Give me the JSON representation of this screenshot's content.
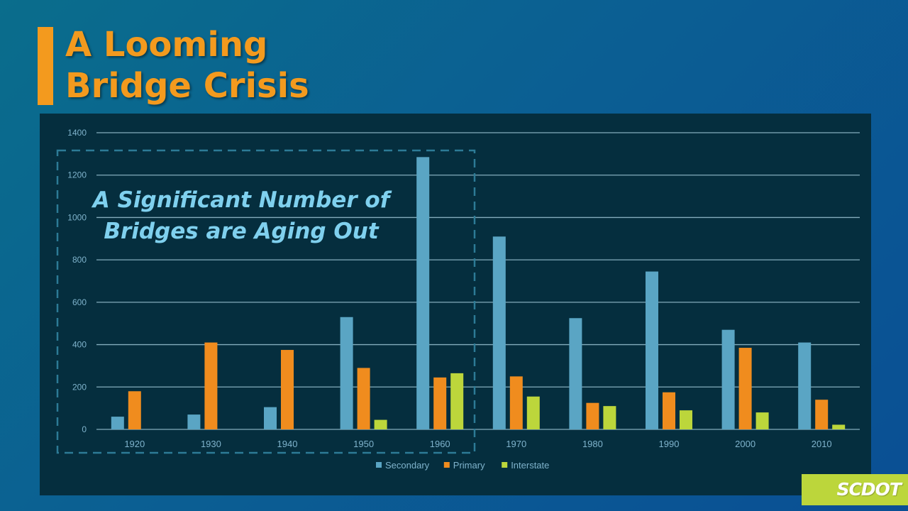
{
  "slide": {
    "title": "A Looming\nBridge Crisis",
    "logo_text": "SCDOT"
  },
  "colors": {
    "accent": "#f39a1e",
    "secondary": "#5aa5c4",
    "primary": "#f08c1e",
    "interstate": "#bcd63b",
    "callout": "#7fd0ee"
  },
  "chart_data": {
    "type": "bar",
    "title": "",
    "xlabel": "",
    "ylabel": "",
    "ylim": [
      0,
      1400
    ],
    "yticks": [
      0,
      200,
      400,
      600,
      800,
      1000,
      1200,
      1400
    ],
    "grid": true,
    "legend_position": "bottom",
    "categories": [
      "1920",
      "1930",
      "1940",
      "1950",
      "1960",
      "1970",
      "1980",
      "1990",
      "2000",
      "2010"
    ],
    "series": [
      {
        "name": "Secondary",
        "values": [
          60,
          70,
          105,
          530,
          1285,
          910,
          525,
          745,
          470,
          410
        ]
      },
      {
        "name": "Primary",
        "values": [
          180,
          410,
          375,
          290,
          245,
          250,
          125,
          175,
          385,
          140
        ]
      },
      {
        "name": "Interstate",
        "values": [
          0,
          0,
          0,
          45,
          265,
          155,
          110,
          90,
          80,
          22
        ]
      }
    ],
    "annotation": {
      "text_lines": [
        "A Significant Number of",
        "Bridges are Aging Out"
      ],
      "spans_categories": [
        "1920",
        "1960"
      ]
    }
  }
}
